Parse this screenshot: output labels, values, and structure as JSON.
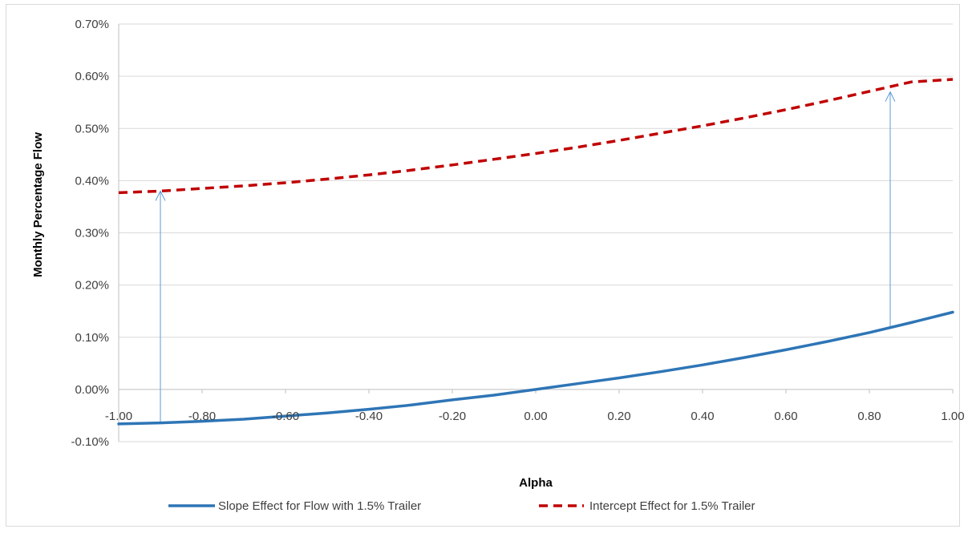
{
  "chart_data": {
    "type": "line",
    "title": "",
    "xlabel": "Alpha",
    "ylabel": "Monthly Percentage Flow",
    "xlim": [
      -1.0,
      1.0
    ],
    "ylim": [
      -0.001,
      0.007
    ],
    "x_ticks": [
      "-1.00",
      "-0.80",
      "-0.60",
      "-0.40",
      "-0.20",
      "0.00",
      "0.20",
      "0.40",
      "0.60",
      "0.80",
      "1.00"
    ],
    "y_ticks": [
      "-0.10%",
      "0.00%",
      "0.10%",
      "0.20%",
      "0.30%",
      "0.40%",
      "0.50%",
      "0.60%",
      "0.70%"
    ],
    "y_tick_values": [
      -0.001,
      0.0,
      0.001,
      0.002,
      0.003,
      0.004,
      0.005,
      0.006,
      0.007
    ],
    "grid": "horizontal",
    "legend_position": "bottom",
    "x": [
      -1.0,
      -0.9,
      -0.8,
      -0.7,
      -0.6,
      -0.5,
      -0.4,
      -0.3,
      -0.2,
      -0.1,
      0.0,
      0.1,
      0.2,
      0.3,
      0.4,
      0.5,
      0.6,
      0.7,
      0.8,
      0.9,
      1.0
    ],
    "series": [
      {
        "name": "Slope Effect for Flow with 1.5% Trailer",
        "color": "#2e75b6",
        "style": "solid",
        "values": [
          -0.00066,
          -0.00064,
          -0.00061,
          -0.00057,
          -0.00051,
          -0.00045,
          -0.00038,
          -0.0003,
          -0.0002,
          -0.00011,
          0.0,
          0.00011,
          0.00022,
          0.00034,
          0.00047,
          0.00061,
          0.00076,
          0.00092,
          0.00109,
          0.00128,
          0.00148
        ]
      },
      {
        "name": "Intercept Effect for 1.5% Trailer",
        "color": "#c00000",
        "style": "dashed",
        "values": [
          0.00377,
          0.0038,
          0.00385,
          0.0039,
          0.00396,
          0.00403,
          0.00411,
          0.0042,
          0.0043,
          0.00441,
          0.00452,
          0.00464,
          0.00477,
          0.00491,
          0.00505,
          0.0052,
          0.00536,
          0.00553,
          0.00571,
          0.00589,
          0.00594
        ]
      }
    ],
    "annotations": [
      {
        "type": "arrow",
        "x": -0.9,
        "from_y": -0.00064,
        "to_y": 0.0038
      },
      {
        "type": "arrow",
        "x": 0.85,
        "from_y": 0.00121,
        "to_y": 0.0057
      }
    ]
  }
}
